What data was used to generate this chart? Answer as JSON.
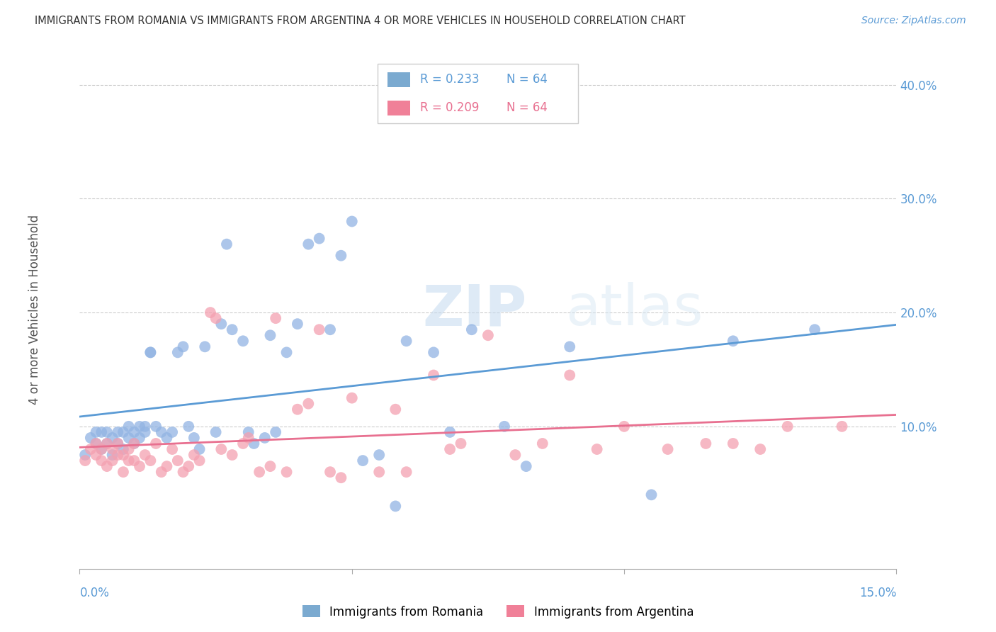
{
  "title": "IMMIGRANTS FROM ROMANIA VS IMMIGRANTS FROM ARGENTINA 4 OR MORE VEHICLES IN HOUSEHOLD CORRELATION CHART",
  "source": "Source: ZipAtlas.com",
  "ylabel": "4 or more Vehicles in Household",
  "ylabel_right_ticks": [
    "40.0%",
    "30.0%",
    "20.0%",
    "10.0%"
  ],
  "ylabel_right_vals": [
    0.4,
    0.3,
    0.2,
    0.1
  ],
  "x_min": 0.0,
  "x_max": 0.15,
  "y_min": -0.025,
  "y_max": 0.43,
  "romania_R": 0.233,
  "romania_N": 64,
  "argentina_R": 0.209,
  "argentina_N": 64,
  "color_romania": "#92B4E3",
  "color_argentina": "#F4A0B0",
  "color_romania_line": "#5B9BD5",
  "color_argentina_line": "#E87090",
  "color_romania_legend": "#7BAAD0",
  "color_argentina_legend": "#F08098",
  "legend_R_romania": "R = 0.233",
  "legend_N_romania": "N = 64",
  "legend_R_argentina": "R = 0.209",
  "legend_N_argentina": "N = 64",
  "legend_label_romania": "Immigrants from Romania",
  "legend_label_argentina": "Immigrants from Argentina",
  "watermark_zip": "ZIP",
  "watermark_atlas": "atlas",
  "romania_x": [
    0.001,
    0.002,
    0.003,
    0.003,
    0.004,
    0.004,
    0.005,
    0.005,
    0.006,
    0.006,
    0.007,
    0.007,
    0.008,
    0.008,
    0.009,
    0.009,
    0.01,
    0.01,
    0.011,
    0.011,
    0.012,
    0.012,
    0.013,
    0.013,
    0.014,
    0.015,
    0.016,
    0.017,
    0.018,
    0.019,
    0.02,
    0.021,
    0.022,
    0.023,
    0.025,
    0.026,
    0.027,
    0.028,
    0.03,
    0.031,
    0.032,
    0.034,
    0.035,
    0.036,
    0.038,
    0.04,
    0.042,
    0.044,
    0.046,
    0.048,
    0.05,
    0.052,
    0.055,
    0.058,
    0.06,
    0.065,
    0.068,
    0.072,
    0.078,
    0.082,
    0.09,
    0.105,
    0.12,
    0.135
  ],
  "romania_y": [
    0.075,
    0.09,
    0.085,
    0.095,
    0.08,
    0.095,
    0.085,
    0.095,
    0.075,
    0.09,
    0.095,
    0.085,
    0.095,
    0.08,
    0.09,
    0.1,
    0.095,
    0.085,
    0.1,
    0.09,
    0.095,
    0.1,
    0.165,
    0.165,
    0.1,
    0.095,
    0.09,
    0.095,
    0.165,
    0.17,
    0.1,
    0.09,
    0.08,
    0.17,
    0.095,
    0.19,
    0.26,
    0.185,
    0.175,
    0.095,
    0.085,
    0.09,
    0.18,
    0.095,
    0.165,
    0.19,
    0.26,
    0.265,
    0.185,
    0.25,
    0.28,
    0.07,
    0.075,
    0.03,
    0.175,
    0.165,
    0.095,
    0.185,
    0.1,
    0.065,
    0.17,
    0.04,
    0.175,
    0.185
  ],
  "argentina_x": [
    0.001,
    0.002,
    0.003,
    0.003,
    0.004,
    0.004,
    0.005,
    0.005,
    0.006,
    0.006,
    0.007,
    0.007,
    0.008,
    0.008,
    0.009,
    0.009,
    0.01,
    0.01,
    0.011,
    0.012,
    0.013,
    0.014,
    0.015,
    0.016,
    0.017,
    0.018,
    0.019,
    0.02,
    0.021,
    0.022,
    0.024,
    0.025,
    0.026,
    0.028,
    0.03,
    0.031,
    0.033,
    0.035,
    0.036,
    0.038,
    0.04,
    0.042,
    0.044,
    0.046,
    0.048,
    0.05,
    0.055,
    0.058,
    0.06,
    0.065,
    0.068,
    0.07,
    0.075,
    0.08,
    0.085,
    0.09,
    0.095,
    0.1,
    0.108,
    0.115,
    0.12,
    0.125,
    0.13,
    0.14
  ],
  "argentina_y": [
    0.07,
    0.08,
    0.075,
    0.085,
    0.07,
    0.08,
    0.065,
    0.085,
    0.07,
    0.08,
    0.075,
    0.085,
    0.06,
    0.075,
    0.07,
    0.08,
    0.085,
    0.07,
    0.065,
    0.075,
    0.07,
    0.085,
    0.06,
    0.065,
    0.08,
    0.07,
    0.06,
    0.065,
    0.075,
    0.07,
    0.2,
    0.195,
    0.08,
    0.075,
    0.085,
    0.09,
    0.06,
    0.065,
    0.195,
    0.06,
    0.115,
    0.12,
    0.185,
    0.06,
    0.055,
    0.125,
    0.06,
    0.115,
    0.06,
    0.145,
    0.08,
    0.085,
    0.18,
    0.075,
    0.085,
    0.145,
    0.08,
    0.1,
    0.08,
    0.085,
    0.085,
    0.08,
    0.1,
    0.1
  ]
}
